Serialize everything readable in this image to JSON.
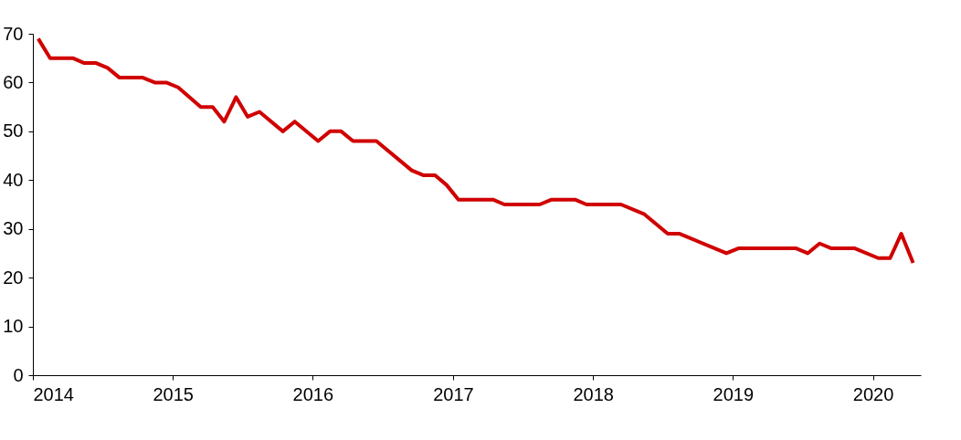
{
  "chart_data": {
    "type": "line",
    "x": [
      "2014-01-15",
      "2014-02-15",
      "2014-04-15",
      "2014-05-15",
      "2014-06-15",
      "2014-07-15",
      "2014-08-15",
      "2014-10-15",
      "2014-11-15",
      "2014-12-15",
      "2015-01-15",
      "2015-03-15",
      "2015-04-15",
      "2015-05-15",
      "2015-06-15",
      "2015-07-15",
      "2015-08-15",
      "2015-10-15",
      "2015-11-15",
      "2016-01-15",
      "2016-02-15",
      "2016-03-15",
      "2016-04-15",
      "2016-06-15",
      "2016-09-15",
      "2016-10-15",
      "2016-11-15",
      "2016-12-15",
      "2017-01-15",
      "2017-04-15",
      "2017-05-15",
      "2017-08-15",
      "2017-09-15",
      "2017-11-15",
      "2017-12-15",
      "2018-03-15",
      "2018-05-15",
      "2018-07-15",
      "2018-08-15",
      "2018-12-15",
      "2019-01-15",
      "2019-06-15",
      "2019-07-15",
      "2019-08-15",
      "2019-09-15",
      "2019-11-15",
      "2020-01-15",
      "2020-02-15",
      "2020-03-15",
      "2020-04-15"
    ],
    "series": [
      {
        "color": "#d00000",
        "values": [
          69,
          65,
          65,
          64,
          64,
          63,
          61,
          61,
          60,
          60,
          59,
          55,
          55,
          52,
          57,
          53,
          54,
          50,
          52,
          48,
          50,
          50,
          48,
          48,
          42,
          41,
          41,
          39,
          36,
          36,
          35,
          35,
          36,
          36,
          35,
          35,
          33,
          29,
          29,
          25,
          26,
          26,
          25,
          27,
          26,
          26,
          24,
          24,
          29,
          23
        ]
      }
    ],
    "xlim": [
      "2014-01-01",
      "2020-05-05"
    ],
    "xticks": [
      "2014",
      "2015",
      "2016",
      "2017",
      "2018",
      "2019",
      "2020"
    ],
    "ylim": [
      0,
      70
    ],
    "yticks": [
      0,
      10,
      20,
      30,
      40,
      50,
      60,
      70
    ],
    "grid": false,
    "marker": "none",
    "line_style": "solid"
  }
}
